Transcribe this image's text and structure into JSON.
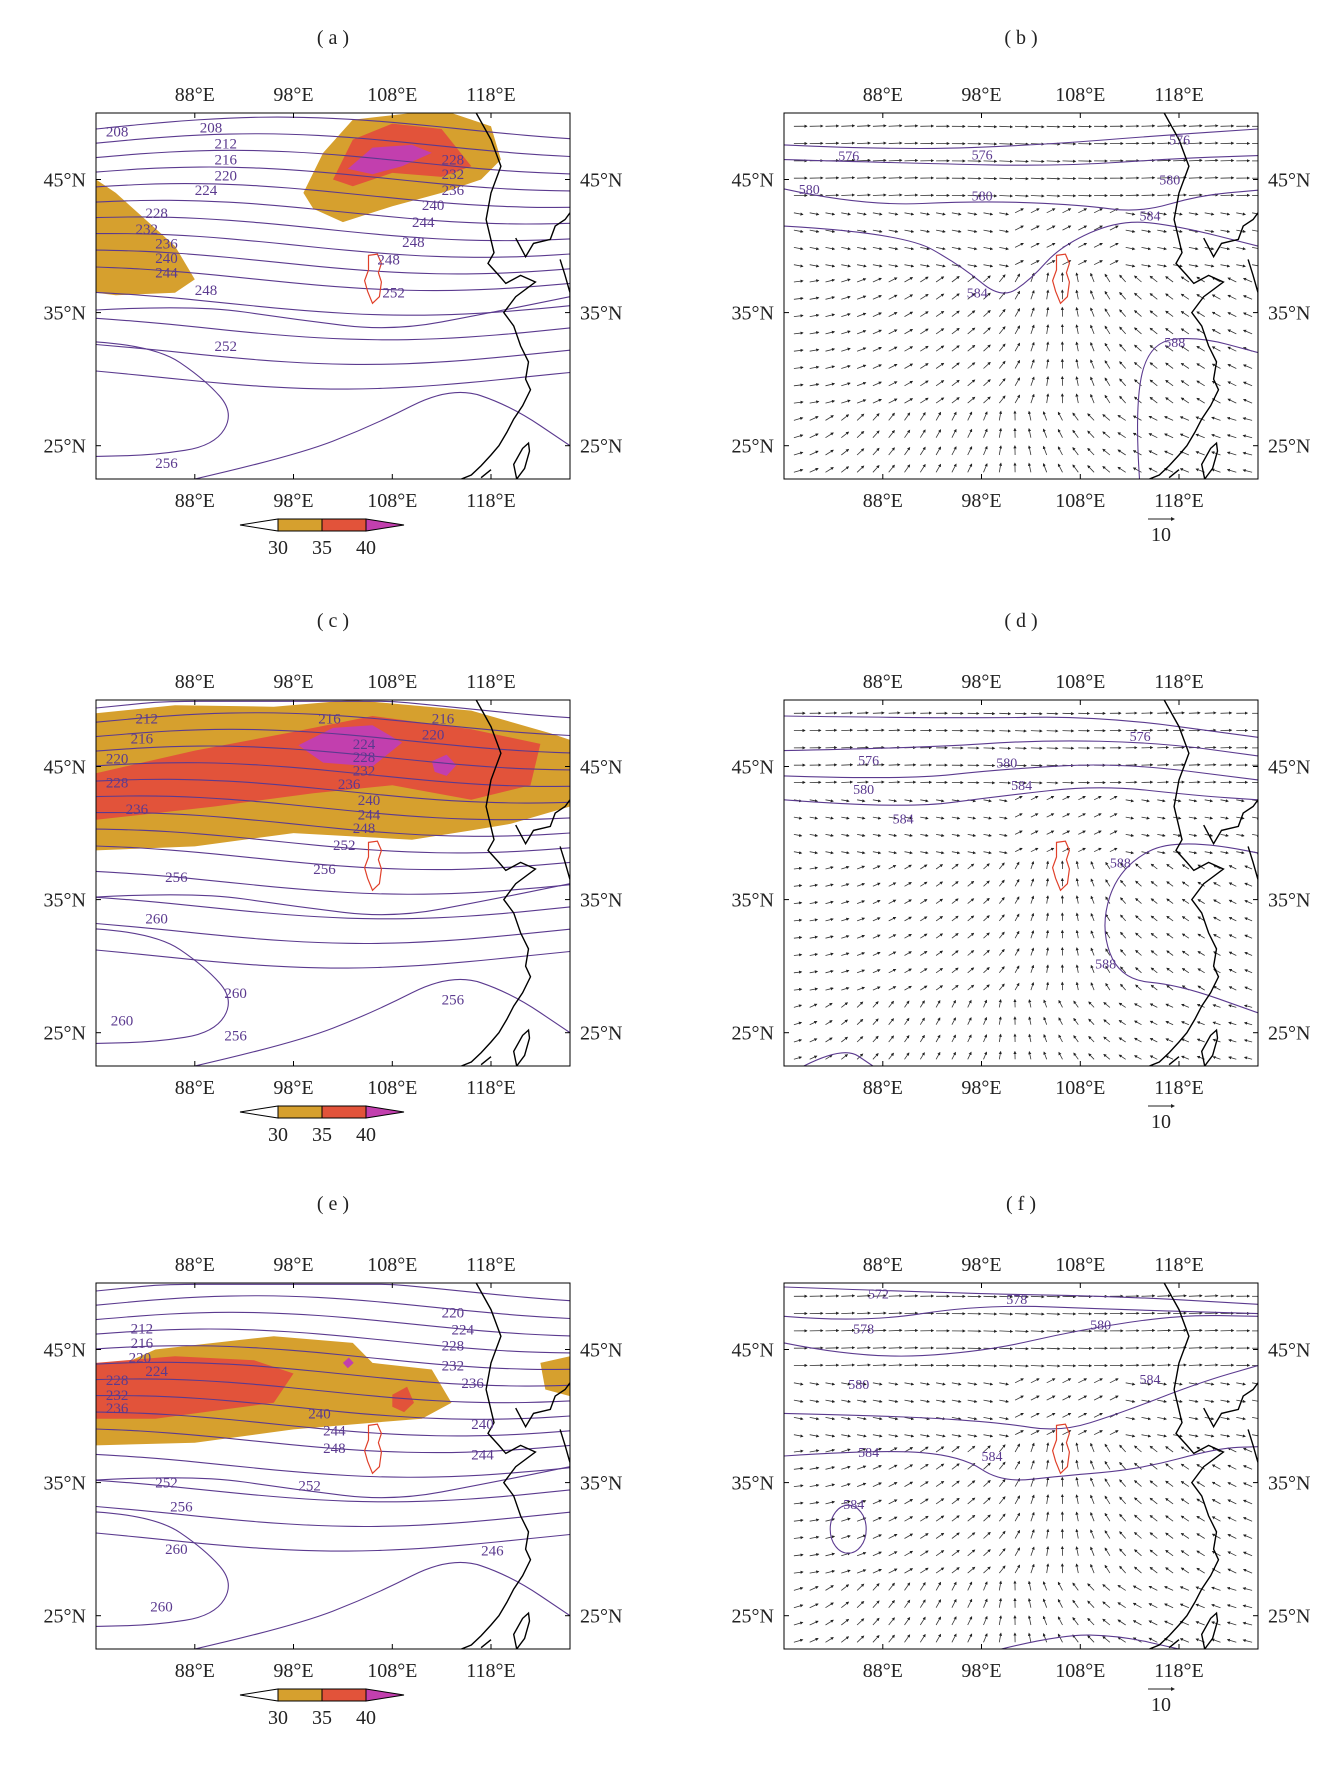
{
  "panels": [
    {
      "id": "a",
      "label": "( a )",
      "kind": "scalar",
      "lon_ticks": [
        "88°E",
        "98°E",
        "108°E",
        "118°E"
      ],
      "lat_ticks": [
        "45°N",
        "35°N",
        "25°N"
      ],
      "colorbar_ticks": [
        "30",
        "35",
        "40"
      ],
      "contour_labels": [
        "208",
        "208",
        "212",
        "216",
        "220",
        "224",
        "228",
        "232",
        "236",
        "240",
        "244",
        "248",
        "248",
        "252",
        "252",
        "256",
        "228",
        "232",
        "236",
        "240",
        "244",
        "248"
      ]
    },
    {
      "id": "b",
      "label": "( b )",
      "kind": "vector",
      "lon_ticks": [
        "88°E",
        "98°E",
        "108°E",
        "118°E"
      ],
      "lat_ticks": [
        "45°N",
        "35°N",
        "25°N"
      ],
      "reference_vector": "10",
      "contour_labels": [
        "576",
        "576",
        "576",
        "580",
        "580",
        "580",
        "584",
        "584",
        "588"
      ]
    },
    {
      "id": "c",
      "label": "( c )",
      "kind": "scalar",
      "lon_ticks": [
        "88°E",
        "98°E",
        "108°E",
        "118°E"
      ],
      "lat_ticks": [
        "45°N",
        "35°N",
        "25°N"
      ],
      "colorbar_ticks": [
        "30",
        "35",
        "40"
      ],
      "contour_labels": [
        "212",
        "216",
        "220",
        "228",
        "236",
        "216",
        "216",
        "220",
        "224",
        "228",
        "232",
        "236",
        "240",
        "244",
        "248",
        "252",
        "256",
        "256",
        "260",
        "260",
        "260",
        "256",
        "256"
      ]
    },
    {
      "id": "d",
      "label": "( d )",
      "kind": "vector",
      "lon_ticks": [
        "88°E",
        "98°E",
        "108°E",
        "118°E"
      ],
      "lat_ticks": [
        "45°N",
        "35°N",
        "25°N"
      ],
      "reference_vector": "10",
      "contour_labels": [
        "576",
        "576",
        "580",
        "580",
        "584",
        "584",
        "588",
        "588"
      ]
    },
    {
      "id": "e",
      "label": "( e )",
      "kind": "scalar",
      "lon_ticks": [
        "88°E",
        "98°E",
        "108°E",
        "118°E"
      ],
      "lat_ticks": [
        "45°N",
        "35°N",
        "25°N"
      ],
      "colorbar_ticks": [
        "30",
        "35",
        "40"
      ],
      "contour_labels": [
        "212",
        "216",
        "220",
        "224",
        "228",
        "232",
        "236",
        "220",
        "224",
        "228",
        "232",
        "236",
        "240",
        "240",
        "244",
        "244",
        "248",
        "252",
        "252",
        "256",
        "260",
        "260",
        "246"
      ]
    },
    {
      "id": "f",
      "label": "( f )",
      "kind": "vector",
      "lon_ticks": [
        "88°E",
        "98°E",
        "108°E",
        "118°E"
      ],
      "lat_ticks": [
        "45°N",
        "35°N",
        "25°N"
      ],
      "reference_vector": "10",
      "contour_labels": [
        "572",
        "578",
        "578",
        "580",
        "580",
        "584",
        "584",
        "584",
        "584"
      ]
    }
  ],
  "colors": {
    "contour": "#5b3a8f",
    "fill_30": "#d6a02e",
    "fill_35": "#e2533a",
    "fill_40": "#c23fae",
    "province": "#e0402a",
    "coast": "#000000"
  }
}
